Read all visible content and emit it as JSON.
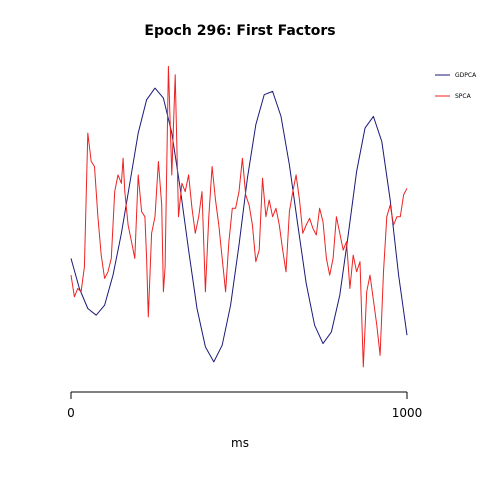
{
  "chart_data": {
    "type": "line",
    "title": "Epoch 296: First Factors",
    "xlabel": "ms",
    "ylabel": "",
    "xlim": [
      0,
      1000
    ],
    "ylim": [
      -1.0,
      1.0
    ],
    "x_ticks": [
      0,
      1000
    ],
    "grid": false,
    "legend_position": "top-right",
    "series": [
      {
        "name": "GDPCA",
        "color": "#1a1a7a",
        "x": [
          0,
          25,
          50,
          75,
          100,
          125,
          150,
          175,
          200,
          225,
          250,
          275,
          300,
          325,
          350,
          375,
          400,
          425,
          450,
          475,
          500,
          525,
          550,
          575,
          600,
          625,
          650,
          675,
          700,
          725,
          750,
          775,
          800,
          825,
          850,
          875,
          900,
          925,
          950,
          975,
          1000
        ],
        "y": [
          -0.2,
          -0.38,
          -0.5,
          -0.54,
          -0.48,
          -0.3,
          -0.05,
          0.25,
          0.55,
          0.75,
          0.82,
          0.76,
          0.55,
          0.22,
          -0.15,
          -0.5,
          -0.73,
          -0.82,
          -0.72,
          -0.48,
          -0.12,
          0.28,
          0.6,
          0.78,
          0.8,
          0.65,
          0.36,
          0.0,
          -0.35,
          -0.6,
          -0.71,
          -0.64,
          -0.42,
          -0.06,
          0.32,
          0.58,
          0.65,
          0.5,
          0.15,
          -0.3,
          -0.66
        ]
      },
      {
        "name": "SPCA",
        "color": "#ee2222",
        "x": [
          0,
          10,
          20,
          30,
          40,
          50,
          60,
          70,
          80,
          90,
          100,
          110,
          120,
          130,
          140,
          150,
          155,
          160,
          170,
          180,
          190,
          200,
          210,
          220,
          225,
          230,
          240,
          250,
          260,
          270,
          275,
          280,
          290,
          300,
          310,
          320,
          330,
          340,
          350,
          360,
          370,
          380,
          390,
          400,
          410,
          420,
          430,
          440,
          450,
          460,
          470,
          480,
          490,
          500,
          510,
          520,
          530,
          540,
          550,
          560,
          570,
          580,
          590,
          600,
          610,
          620,
          630,
          640,
          650,
          660,
          670,
          680,
          690,
          700,
          710,
          720,
          730,
          740,
          750,
          760,
          770,
          780,
          790,
          800,
          810,
          820,
          830,
          840,
          850,
          860,
          870,
          880,
          890,
          900,
          910,
          920,
          930,
          940,
          950,
          960,
          970,
          980,
          990,
          1000
        ],
        "y": [
          -0.3,
          -0.43,
          -0.38,
          -0.4,
          -0.25,
          0.55,
          0.38,
          0.35,
          0.05,
          -0.18,
          -0.32,
          -0.28,
          -0.2,
          0.2,
          0.3,
          0.25,
          0.4,
          0.2,
          0.0,
          -0.1,
          -0.2,
          0.3,
          0.08,
          0.05,
          -0.2,
          -0.55,
          -0.05,
          0.05,
          0.38,
          0.12,
          -0.4,
          -0.25,
          0.95,
          0.3,
          0.9,
          0.05,
          0.25,
          0.2,
          0.3,
          0.1,
          -0.05,
          0.05,
          0.2,
          -0.4,
          0.05,
          0.35,
          0.15,
          0.0,
          -0.2,
          -0.4,
          -0.1,
          0.1,
          0.1,
          0.2,
          0.4,
          0.18,
          0.12,
          0.0,
          -0.22,
          -0.15,
          0.28,
          0.05,
          0.15,
          0.05,
          0.1,
          0.0,
          -0.15,
          -0.28,
          0.08,
          0.2,
          0.3,
          0.15,
          -0.05,
          0.0,
          0.04,
          -0.02,
          -0.06,
          0.1,
          0.02,
          -0.2,
          -0.3,
          -0.2,
          0.05,
          -0.05,
          -0.15,
          -0.1,
          -0.38,
          -0.18,
          -0.28,
          -0.22,
          -0.85,
          -0.4,
          -0.3,
          -0.45,
          -0.6,
          -0.78,
          -0.28,
          0.05,
          0.12,
          0.0,
          0.05,
          0.05,
          0.18,
          0.22
        ]
      }
    ]
  }
}
